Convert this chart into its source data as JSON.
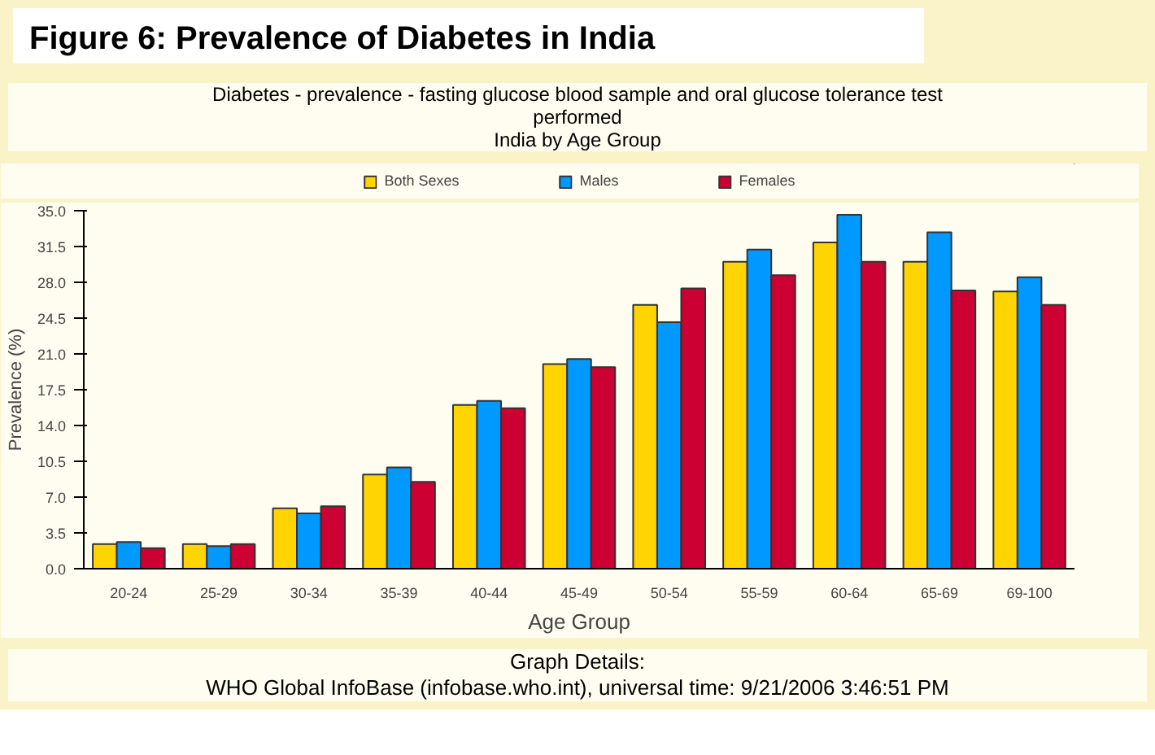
{
  "chart_data": {
    "type": "bar",
    "title": "Figure 6: Prevalence of Diabetes in India",
    "subtitle": "Diabetes - prevalence - fasting glucose blood sample and oral glucose tolerance test performed\nIndia by Age Group",
    "xlabel": "Age Group",
    "ylabel": "Prevalence (%)",
    "categories": [
      "20-24",
      "25-29",
      "30-34",
      "35-39",
      "40-44",
      "45-49",
      "50-54",
      "55-59",
      "60-64",
      "65-69",
      "69-100"
    ],
    "series": [
      {
        "name": "Both Sexes",
        "color": "#ffd400",
        "values": [
          2.4,
          2.4,
          5.9,
          9.2,
          16.0,
          20.0,
          25.8,
          30.0,
          31.9,
          30.0,
          27.1
        ]
      },
      {
        "name": "Males",
        "color": "#0099ff",
        "values": [
          2.6,
          2.2,
          5.4,
          9.9,
          16.4,
          20.5,
          24.1,
          31.2,
          34.6,
          32.9,
          28.5
        ]
      },
      {
        "name": "Females",
        "color": "#cc0033",
        "values": [
          2.0,
          2.4,
          6.1,
          8.5,
          15.7,
          19.7,
          27.4,
          28.7,
          30.0,
          27.2,
          25.8
        ]
      }
    ],
    "ylim": [
      0,
      35
    ],
    "yticks": [
      {
        "value": 0,
        "label": "0.0"
      },
      3.5,
      {
        "value": 7,
        "label": "7.0"
      },
      10.5,
      {
        "value": 14,
        "label": "14.0"
      },
      17.5,
      {
        "value": 21,
        "label": "21.0"
      },
      24.5,
      {
        "value": 28,
        "label": "28.0"
      },
      31.5,
      {
        "value": 35,
        "label": "35.0"
      }
    ],
    "grid": false,
    "legend": "top",
    "annotations": [
      "Graph Details:",
      "WHO Global InfoBase (infobase.who.int), universal time: 9/21/2006 3:46:51 PM"
    ]
  }
}
